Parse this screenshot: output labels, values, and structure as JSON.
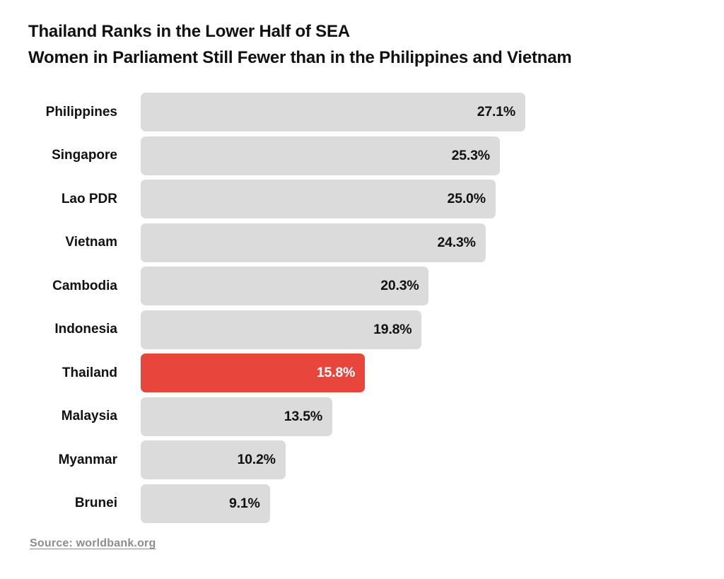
{
  "title": {
    "line1": "Thailand Ranks in the Lower Half of SEA",
    "line2": "Women in Parliament Still Fewer than in the Philippines and Vietnam"
  },
  "source": "Source: worldbank.org",
  "colors": {
    "bar_default": "#dbdbdb",
    "bar_highlight": "#e8463c",
    "value_text_default": "#111111",
    "value_text_highlight": "#ffffff"
  },
  "chart_data": {
    "type": "bar",
    "orientation": "horizontal",
    "title": "Thailand Ranks in the Lower Half of SEA",
    "subtitle": "Women in Parliament Still Fewer than in the Philippines and Vietnam",
    "categories": [
      "Philippines",
      "Singapore",
      "Lao PDR",
      "Vietnam",
      "Cambodia",
      "Indonesia",
      "Thailand",
      "Malaysia",
      "Myanmar",
      "Brunei"
    ],
    "values": [
      27.1,
      25.3,
      25.0,
      24.3,
      20.3,
      19.8,
      15.8,
      13.5,
      10.2,
      9.1
    ],
    "value_labels": [
      "27.1%",
      "25.3%",
      "25.0%",
      "24.3%",
      "20.3%",
      "19.8%",
      "15.8%",
      "13.5%",
      "10.2%",
      "9.1%"
    ],
    "highlight_category": "Thailand",
    "unit": "%",
    "xlabel": "",
    "ylabel": "",
    "xlim": [
      0,
      27.1
    ],
    "grid": false,
    "legend": false,
    "value_label_position": "inside-end"
  }
}
